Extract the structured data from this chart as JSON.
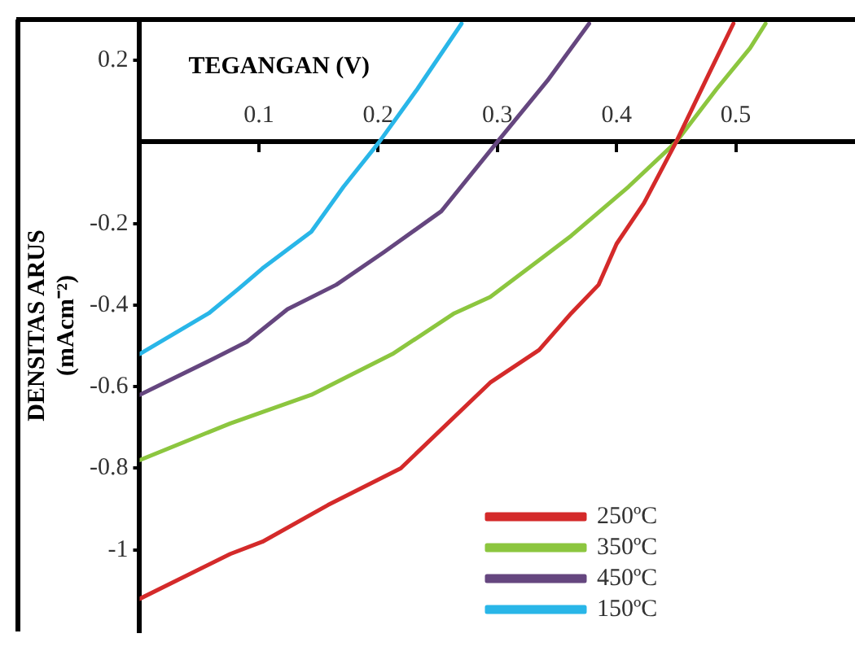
{
  "chart_data": {
    "type": "line",
    "xlabel": "TEGANGAN (V)",
    "ylabel": "DENSITAS ARUS (mAcm⁻²)",
    "xlim": [
      0,
      0.6
    ],
    "xticks": [
      0.1,
      0.2,
      0.3,
      0.4,
      0.5
    ],
    "ylim": [
      -1.2,
      0.3
    ],
    "yticks": [
      0.2,
      -0.2,
      -0.4,
      -0.6,
      -0.8,
      -1
    ],
    "grid": false,
    "legend": "bottom right",
    "marker": "none",
    "line_style": "solid",
    "series": [
      {
        "name": "250ºC",
        "color": "#d42a2a",
        "x": [
          0,
          0.076,
          0.103,
          0.158,
          0.219,
          0.294,
          0.335,
          0.362,
          0.385,
          0.4,
          0.423,
          0.45,
          0.478,
          0.498
        ],
        "values": [
          -1.12,
          -1.01,
          -0.98,
          -0.89,
          -0.8,
          -0.59,
          -0.51,
          -0.42,
          -0.35,
          -0.25,
          -0.15,
          0,
          0.17,
          0.29
        ]
      },
      {
        "name": "350ºC",
        "color": "#8cc63f",
        "x": [
          0,
          0.076,
          0.144,
          0.212,
          0.264,
          0.294,
          0.335,
          0.362,
          0.41,
          0.45,
          0.484,
          0.512,
          0.525
        ],
        "values": [
          -0.78,
          -0.69,
          -0.62,
          -0.52,
          -0.42,
          -0.38,
          -0.29,
          -0.23,
          -0.11,
          0,
          0.13,
          0.23,
          0.29
        ]
      },
      {
        "name": "450ºC",
        "color": "#65467f",
        "x": [
          0,
          0.063,
          0.09,
          0.124,
          0.165,
          0.205,
          0.253,
          0.3,
          0.342,
          0.377
        ],
        "values": [
          -0.62,
          -0.53,
          -0.49,
          -0.41,
          -0.35,
          -0.27,
          -0.17,
          0,
          0.15,
          0.29
        ]
      },
      {
        "name": "150ºC",
        "color": "#29b6e8",
        "x": [
          0,
          0.058,
          0.083,
          0.103,
          0.144,
          0.171,
          0.201,
          0.233,
          0.27
        ],
        "values": [
          -0.52,
          -0.42,
          -0.36,
          -0.31,
          -0.22,
          -0.11,
          0,
          0.13,
          0.29
        ]
      }
    ]
  }
}
